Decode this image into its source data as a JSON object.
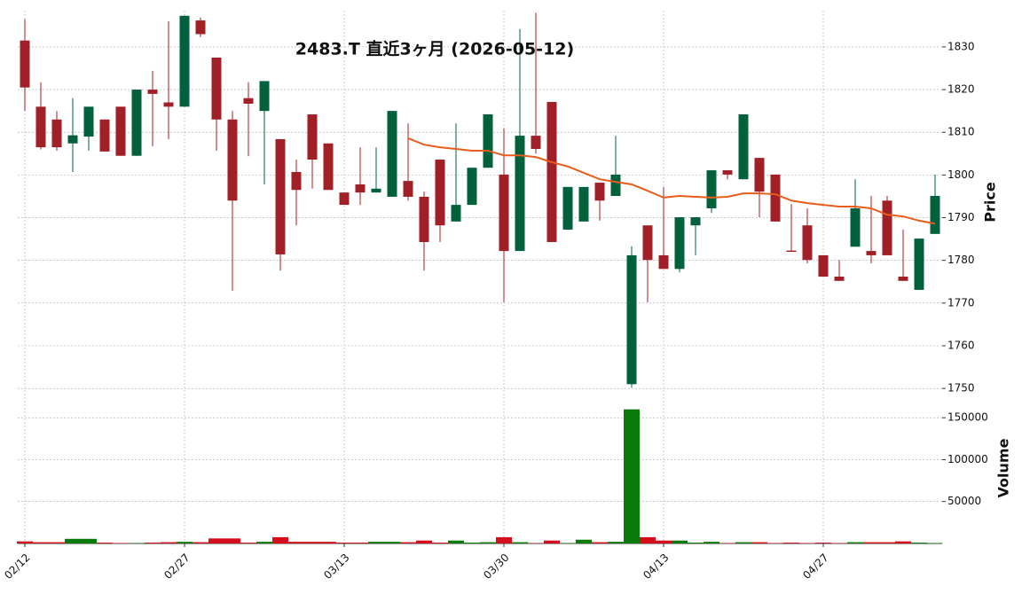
{
  "chart_data": {
    "type": "candlestick",
    "title": "2483.T 直近3ヶ月 (2026-05-12)",
    "categories": [
      "02/12",
      null,
      null,
      null,
      null,
      null,
      null,
      null,
      null,
      null,
      "02/27",
      null,
      null,
      null,
      null,
      null,
      null,
      null,
      null,
      null,
      "03/13",
      null,
      null,
      null,
      null,
      null,
      null,
      null,
      null,
      null,
      "03/30",
      null,
      null,
      null,
      null,
      null,
      null,
      null,
      null,
      null,
      "04/13",
      null,
      null,
      null,
      null,
      null,
      null,
      null,
      null,
      null,
      "04/27",
      null,
      null,
      null,
      null,
      null,
      null,
      null
    ],
    "open": [
      1831.5,
      1816,
      1813,
      1807.4,
      1809,
      1813,
      1816,
      1804.5,
      1820,
      1817,
      1816,
      1836.2,
      1827.5,
      1813,
      1818,
      1815,
      1808.4,
      1800.7,
      1814.2,
      1807.4,
      1795.9,
      1797.8,
      1795.9,
      1794.9,
      1798.6,
      1794.9,
      1803.6,
      1789.1,
      1793,
      1801.7,
      1800.1,
      1782.2,
      1809.2,
      1817.1,
      1787.2,
      1789.1,
      1798.2,
      1795.1,
      1751,
      1788.2,
      1781.2,
      1778,
      1788.2,
      1792.2,
      1801.1,
      1799,
      1804,
      1800.1,
      1782.3,
      1788.2,
      1781.2,
      1776.2,
      1783.2,
      1782.2,
      1794,
      1776.2,
      1773.1,
      1786.2
    ],
    "high": [
      1836.5,
      1821.7,
      1815,
      1818,
      1816,
      1813,
      1816,
      1820,
      1824.4,
      1836,
      1837.3,
      1836.9,
      1827.5,
      1815,
      1821.7,
      1822,
      1808.4,
      1803.6,
      1814.2,
      1807.4,
      1795.9,
      1806.5,
      1806.5,
      1815,
      1812.1,
      1796.1,
      1803.6,
      1812.1,
      1801.7,
      1814.2,
      1810.9,
      1834.2,
      1838,
      1817.1,
      1797.2,
      1797.2,
      1798.2,
      1809.2,
      1783.3,
      1788.2,
      1797.2,
      1790.1,
      1790.1,
      1801.1,
      1801.1,
      1814.2,
      1804,
      1800.1,
      1793.2,
      1792.2,
      1781.2,
      1780.1,
      1799,
      1795.1,
      1795.1,
      1787.2,
      1785.1,
      1800.1
    ],
    "low": [
      1815,
      1806,
      1805.7,
      1800.7,
      1805.7,
      1805.5,
      1804.5,
      1804.5,
      1806.7,
      1808.4,
      1816,
      1832.3,
      1805.7,
      1772.9,
      1804.4,
      1797.8,
      1777.6,
      1788.2,
      1796.8,
      1796.5,
      1793,
      1793,
      1795.9,
      1794.9,
      1794,
      1777.6,
      1784.3,
      1789.1,
      1793,
      1801.7,
      1770.2,
      1782.2,
      1805,
      1784.3,
      1787.2,
      1789.1,
      1789.3,
      1795.1,
      1750.2,
      1770.2,
      1778,
      1777.2,
      1781.2,
      1791.1,
      1799,
      1799,
      1790.1,
      1789.1,
      1782,
      1779.3,
      1776.2,
      1775.2,
      1783.2,
      1779.3,
      1781.2,
      1775.2,
      1773.1,
      1786.2
    ],
    "close": [
      1820.5,
      1806.5,
      1806.5,
      1809.3,
      1816,
      1805.5,
      1804.5,
      1820,
      1819,
      1816,
      1837.3,
      1833,
      1813,
      1794,
      1816.7,
      1822,
      1781.4,
      1796.5,
      1803.6,
      1796.5,
      1793,
      1795.9,
      1796.8,
      1815,
      1794.9,
      1784.3,
      1788.2,
      1793,
      1801.7,
      1814.2,
      1782.2,
      1809.2,
      1806.1,
      1784.3,
      1797.2,
      1797.2,
      1794,
      1800.1,
      1781.2,
      1780.1,
      1778,
      1790.1,
      1790.1,
      1801.1,
      1800.1,
      1814.2,
      1796.1,
      1789.1,
      1782,
      1780.1,
      1776.2,
      1775.2,
      1792.2,
      1781.2,
      1781.2,
      1775.2,
      1785.1,
      1795.1
    ],
    "up_color": "#00613c",
    "down_color": "#a11f26",
    "ma": {
      "color": "#e85c1c",
      "values": [
        null,
        null,
        null,
        null,
        null,
        null,
        null,
        null,
        null,
        null,
        null,
        null,
        null,
        null,
        null,
        null,
        null,
        null,
        null,
        null,
        null,
        null,
        null,
        null,
        1808.6,
        1807.1,
        1806.5,
        1806.1,
        1805.7,
        1805.7,
        1804.6,
        1804.6,
        1804.2,
        1803,
        1802,
        1800.5,
        1799,
        1798.4,
        1797.8,
        1796.3,
        1794.7,
        1795.1,
        1794.9,
        1794.7,
        1794.9,
        1795.7,
        1795.7,
        1795.5,
        1794,
        1793.4,
        1793,
        1792.6,
        1792.6,
        1792.2,
        1790.7,
        1790.3,
        1789.3,
        1788.6
      ]
    },
    "ylim": [
      1746.5,
      1838.5
    ],
    "yticks": [
      1750,
      1760,
      1770,
      1780,
      1790,
      1800,
      1810,
      1820,
      1830
    ],
    "ylabel": "Price",
    "volume": [
      2500,
      1500,
      1500,
      5500,
      5500,
      1000,
      500,
      500,
      1000,
      1500,
      2000,
      1500,
      6000,
      6000,
      1000,
      2000,
      7500,
      2000,
      2000,
      2000,
      1000,
      1000,
      2000,
      2000,
      1500,
      3500,
      1000,
      3500,
      1000,
      1500,
      7500,
      1500,
      500,
      3500,
      500,
      4500,
      1500,
      2000,
      160000,
      7500,
      3500,
      3500,
      1000,
      2000,
      500,
      1500,
      1500,
      500,
      1000,
      500,
      1000,
      500,
      1500,
      1500,
      1500,
      2500,
      1000,
      500
    ],
    "volume_up_color": "#0a7a0a",
    "volume_down_color": "#d40e1c",
    "volume_ylim": [
      0,
      165000
    ],
    "volume_yticks": [
      50000,
      100000,
      150000
    ],
    "volume_ylabel": "Volume",
    "grid": true
  }
}
